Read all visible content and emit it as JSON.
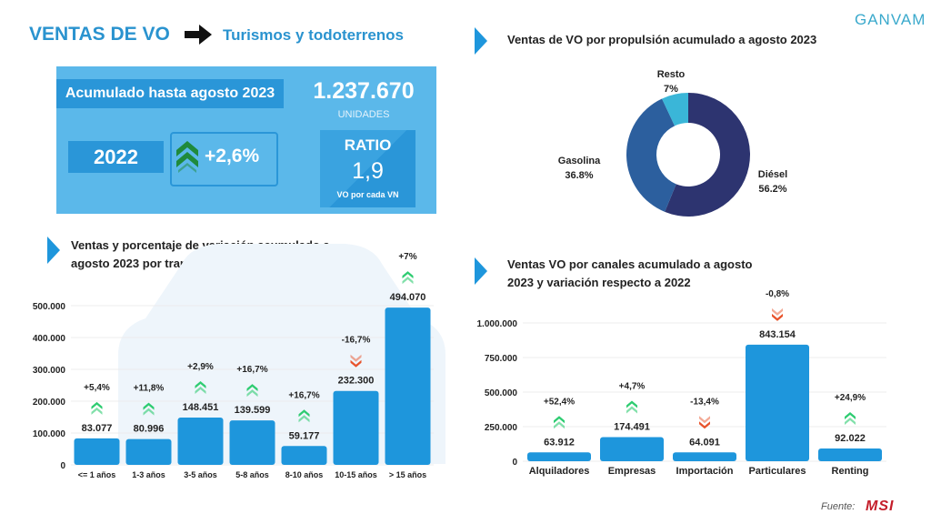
{
  "header": {
    "title": "VENTAS DE VO",
    "subtitle": "Turismos y todoterrenos",
    "logo": "GANVAM"
  },
  "summary": {
    "accumulated_label": "Acumulado hasta agosto 2023",
    "total": "1.237.670",
    "units": "UNIDADES",
    "year": "2022",
    "variation": "+2,6%",
    "variation_icon": "double-chevron-up-icon",
    "ratio_label": "RATIO",
    "ratio_value": "1,9",
    "ratio_note": "VO por cada VN"
  },
  "colors": {
    "accent": "#2a93cf",
    "panel": "#5bb8ea",
    "bar": "#1e96dc",
    "up": "#2ecc71",
    "down": "#e8532b"
  },
  "footer": {
    "source_label": "Fuente:",
    "source_logo": "MSI"
  },
  "chart_data": [
    {
      "type": "pie",
      "title": "Ventas de VO por propulsión acumulado a agosto 2023",
      "donut": true,
      "slices": [
        {
          "label": "Diésel",
          "value": 56.2,
          "display": "56.2%",
          "color": "#2d3470"
        },
        {
          "label": "Gasolina",
          "value": 36.8,
          "display": "36.8%",
          "color": "#2c5f9e"
        },
        {
          "label": "Resto",
          "value": 7,
          "display": "7%",
          "color": "#3ab6d8"
        }
      ]
    },
    {
      "type": "bar",
      "title": [
        "Ventas y porcentaje de variación acumulado a",
        "agosto 2023 por tramos de edad frente a 2022"
      ],
      "categories": [
        "<= 1 años",
        "1-3 años",
        "3-5 años",
        "5-8 años",
        "8-10 años",
        "10-15 años",
        "> 15 años"
      ],
      "values": [
        83077,
        80996,
        148451,
        139599,
        59177,
        232300,
        494070
      ],
      "value_labels": [
        "83.077",
        "80.996",
        "148.451",
        "139.599",
        "59.177",
        "232.300",
        "494.070"
      ],
      "variation": [
        "+5,4%",
        "+11,8%",
        "+2,9%",
        "+16,7%",
        "+16,7%",
        "-16,7%",
        "+7%"
      ],
      "ylim": [
        0,
        500000
      ],
      "yticks": [
        "0",
        "100.000",
        "200.000",
        "300.000",
        "400.000",
        "500.000"
      ],
      "grid": true
    },
    {
      "type": "bar",
      "title": [
        "Ventas VO por canales acumulado a agosto",
        "2023 y variación respecto a 2022"
      ],
      "categories": [
        "Alquiladores",
        "Empresas",
        "Importación",
        "Particulares",
        "Renting"
      ],
      "values": [
        63912,
        174491,
        64091,
        843154,
        92022
      ],
      "value_labels": [
        "63.912",
        "174.491",
        "64.091",
        "843.154",
        "92.022"
      ],
      "variation": [
        "+52,4%",
        "+4,7%",
        "-13,4%",
        "-0,8%",
        "+24,9%"
      ],
      "ylim": [
        0,
        1000000
      ],
      "yticks": [
        "0",
        "250.000",
        "500.000",
        "750.000",
        "1.000.000"
      ],
      "grid": true
    }
  ]
}
